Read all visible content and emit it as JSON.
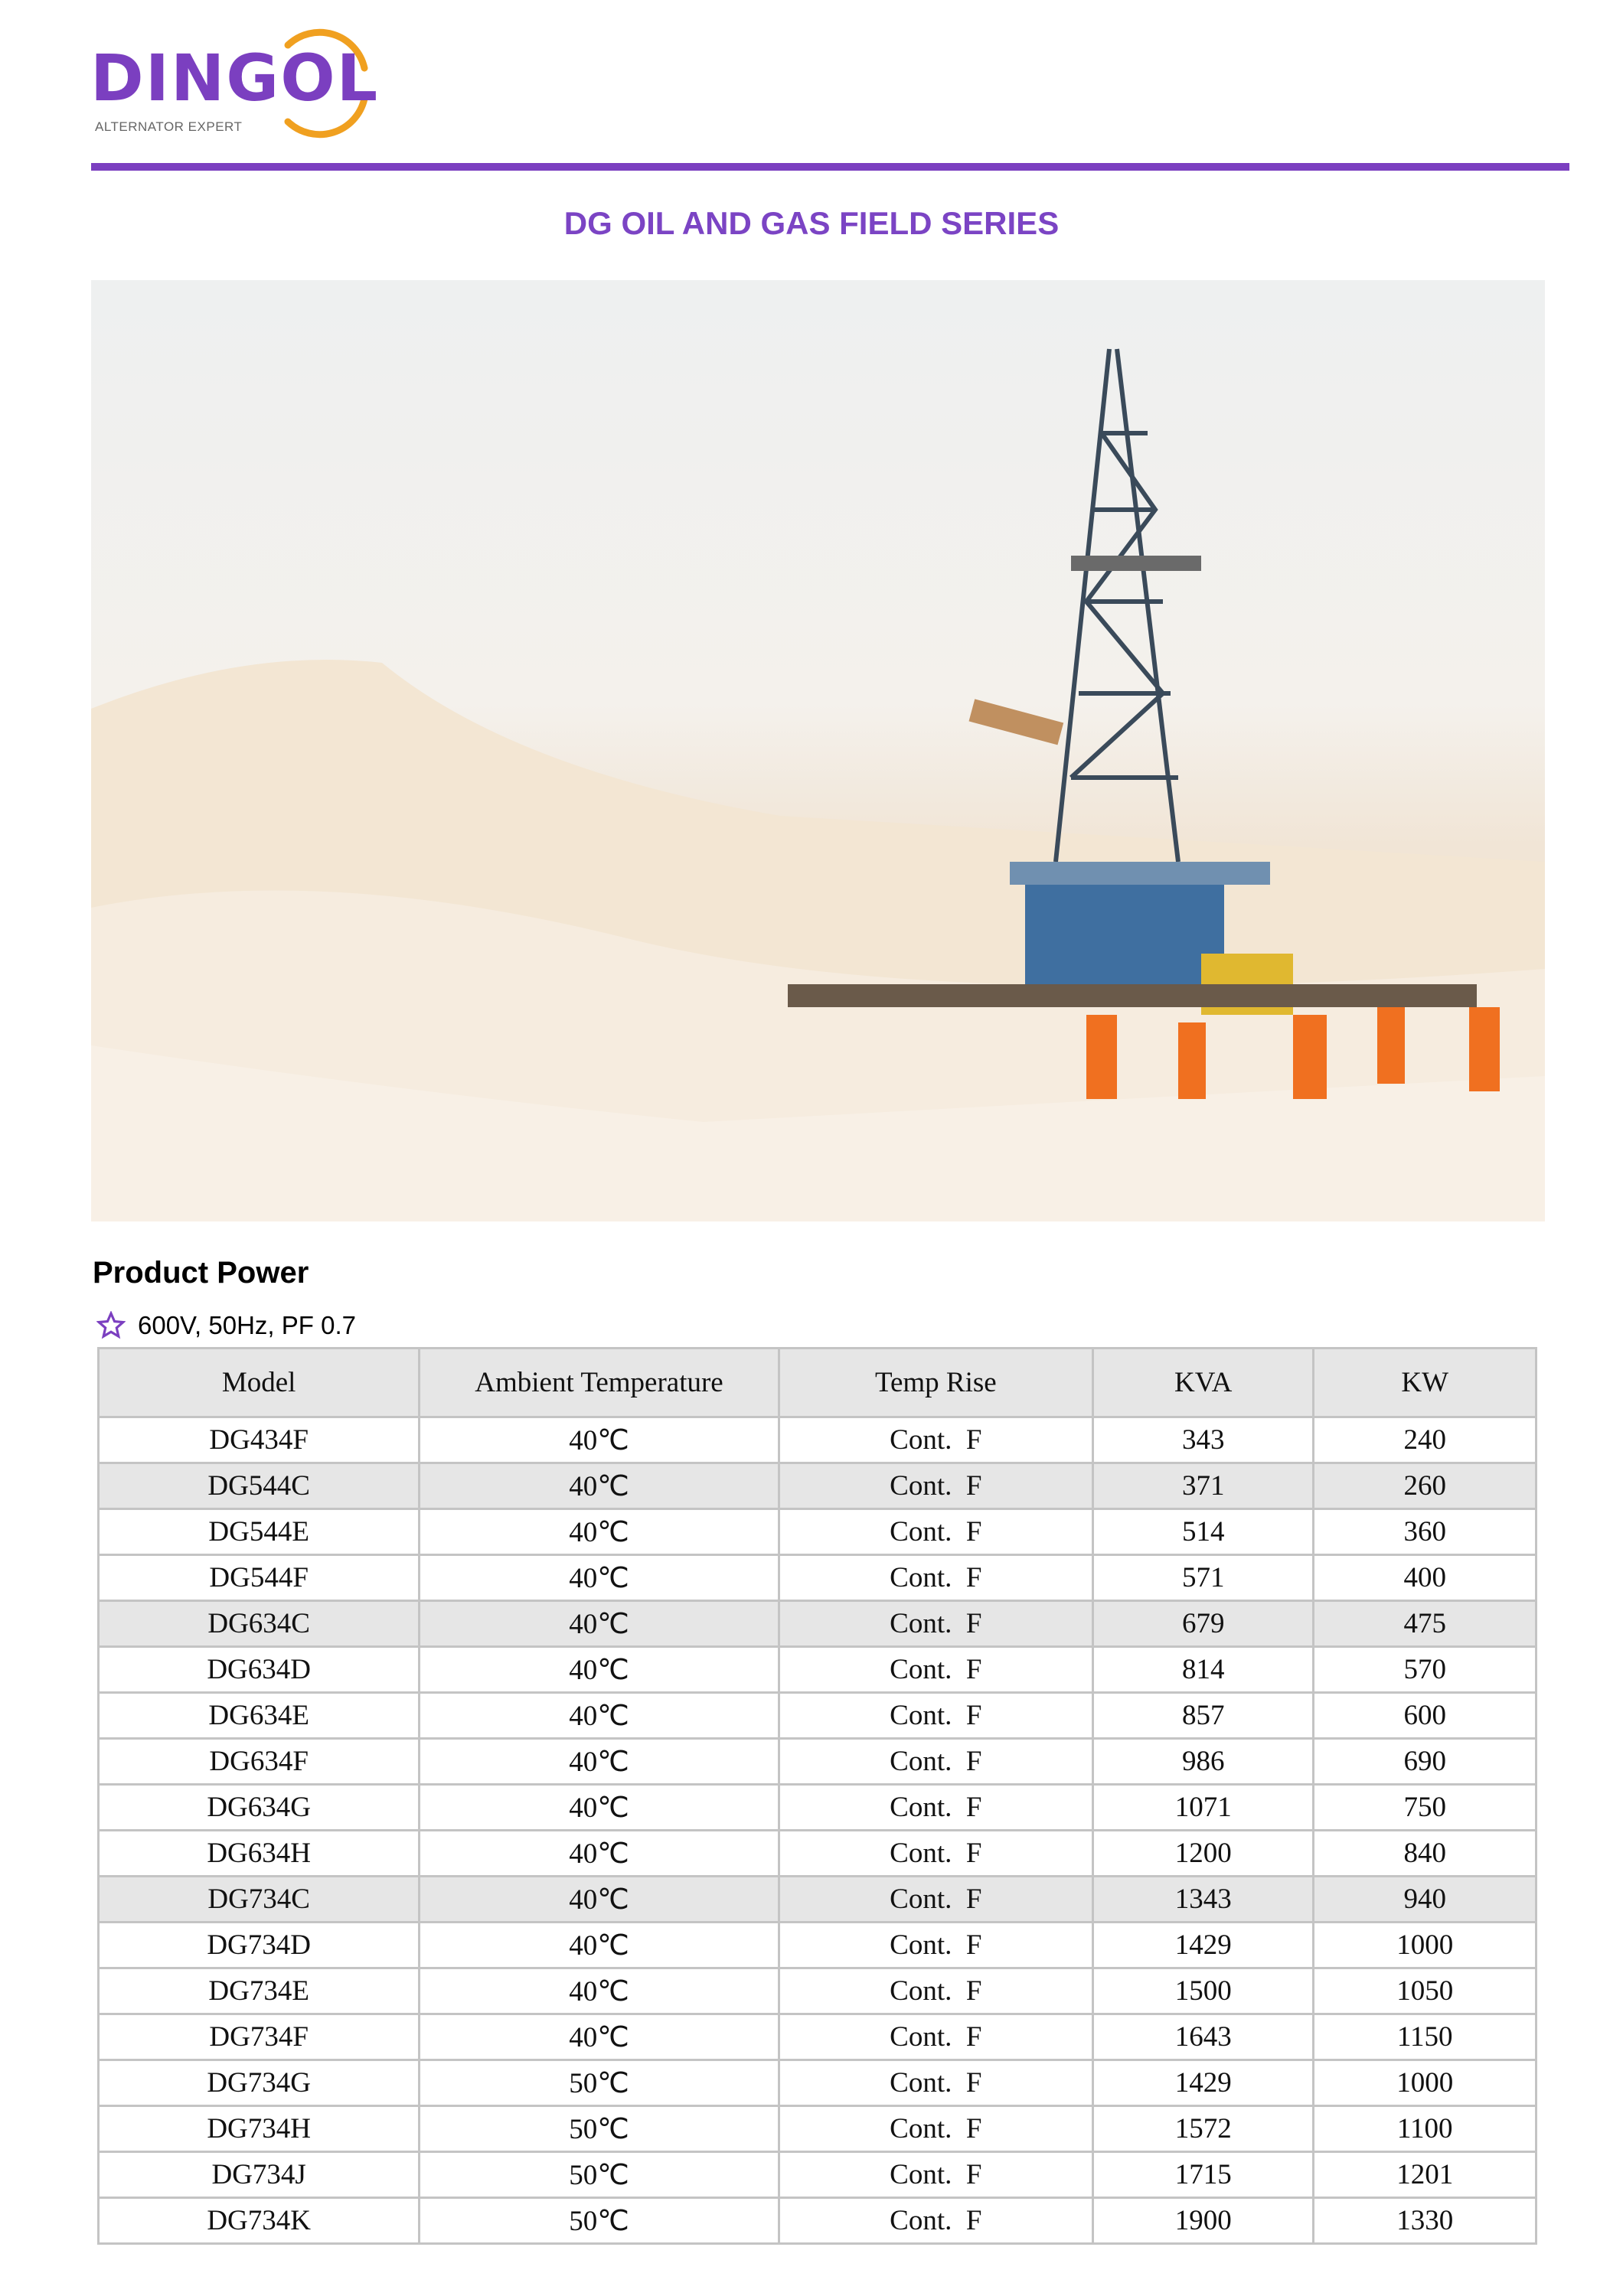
{
  "logo": {
    "name": "DINGOL",
    "tagline": "ALTERNATOR EXPERT",
    "brand_color": "#7b3fc0",
    "accent_color": "#f0a020"
  },
  "page_title": "DG OIL AND GAS FIELD SERIES",
  "section_title": "Product Power",
  "spec": {
    "icon": "star-outline-icon",
    "text": "600V, 50Hz, PF 0.7"
  },
  "table": {
    "headers": [
      "Model",
      "Ambient Temperature",
      "Temp Rise",
      "KVA",
      "KW"
    ],
    "rows": [
      {
        "cells": [
          "DG434F",
          "40℃",
          "Cont.  F",
          "343",
          "240"
        ],
        "highlighted": false
      },
      {
        "cells": [
          "DG544C",
          "40℃",
          "Cont.  F",
          "371",
          "260"
        ],
        "highlighted": true
      },
      {
        "cells": [
          "DG544E",
          "40℃",
          "Cont.  F",
          "514",
          "360"
        ],
        "highlighted": false
      },
      {
        "cells": [
          "DG544F",
          "40℃",
          "Cont.  F",
          "571",
          "400"
        ],
        "highlighted": false
      },
      {
        "cells": [
          "DG634C",
          "40℃",
          "Cont.  F",
          "679",
          "475"
        ],
        "highlighted": true
      },
      {
        "cells": [
          "DG634D",
          "40℃",
          "Cont.  F",
          "814",
          "570"
        ],
        "highlighted": false
      },
      {
        "cells": [
          "DG634E",
          "40℃",
          "Cont.  F",
          "857",
          "600"
        ],
        "highlighted": false
      },
      {
        "cells": [
          "DG634F",
          "40℃",
          "Cont.  F",
          "986",
          "690"
        ],
        "highlighted": false
      },
      {
        "cells": [
          "DG634G",
          "40℃",
          "Cont.  F",
          "1071",
          "750"
        ],
        "highlighted": false
      },
      {
        "cells": [
          "DG634H",
          "40℃",
          "Cont.  F",
          "1200",
          "840"
        ],
        "highlighted": false
      },
      {
        "cells": [
          "DG734C",
          "40℃",
          "Cont.  F",
          "1343",
          "940"
        ],
        "highlighted": true
      },
      {
        "cells": [
          "DG734D",
          "40℃",
          "Cont.  F",
          "1429",
          "1000"
        ],
        "highlighted": false
      },
      {
        "cells": [
          "DG734E",
          "40℃",
          "Cont.  F",
          "1500",
          "1050"
        ],
        "highlighted": false
      },
      {
        "cells": [
          "DG734F",
          "40℃",
          "Cont.  F",
          "1643",
          "1150"
        ],
        "highlighted": false
      },
      {
        "cells": [
          "DG734G",
          "50℃",
          "Cont.  F",
          "1429",
          "1000"
        ],
        "highlighted": false
      },
      {
        "cells": [
          "DG734H",
          "50℃",
          "Cont.  F",
          "1572",
          "1100"
        ],
        "highlighted": false
      },
      {
        "cells": [
          "DG734J",
          "50℃",
          "Cont.  F",
          "1715",
          "1201"
        ],
        "highlighted": false
      },
      {
        "cells": [
          "DG734K",
          "50℃",
          "Cont.  F",
          "1900",
          "1330"
        ],
        "highlighted": false
      }
    ]
  }
}
